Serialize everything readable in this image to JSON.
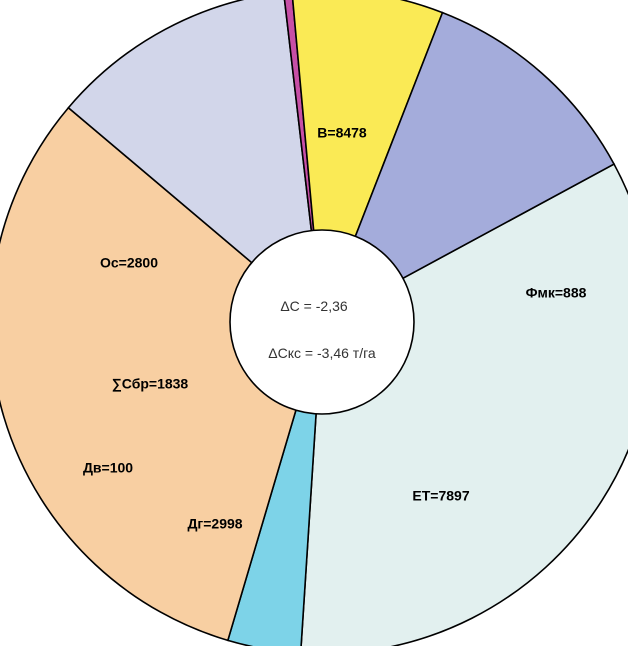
{
  "chart_data": {
    "type": "pie",
    "donut_hole": true,
    "slices": [
      {
        "label": "В=8478",
        "value": 8478,
        "color": "#e2f0ef"
      },
      {
        "label": "Фмк=888",
        "value": 888,
        "color": "#7dd3e8"
      },
      {
        "label": "ЕТ=7897",
        "value": 7897,
        "color": "#f8cfa2"
      },
      {
        "label": "Дг=2998",
        "value": 2998,
        "color": "#d2d6ea"
      },
      {
        "label": "Дв=100",
        "value": 100,
        "color": "#c74fa6"
      },
      {
        "label": "∑Сбр=1838",
        "value": 1838,
        "color": "#faea55"
      },
      {
        "label": "Ос=2800",
        "value": 2800,
        "color": "#a4acdb"
      }
    ],
    "center_text": [
      "ΔС = -2,36",
      "ΔСкс = -3,46 т/га"
    ],
    "legend": "none"
  }
}
